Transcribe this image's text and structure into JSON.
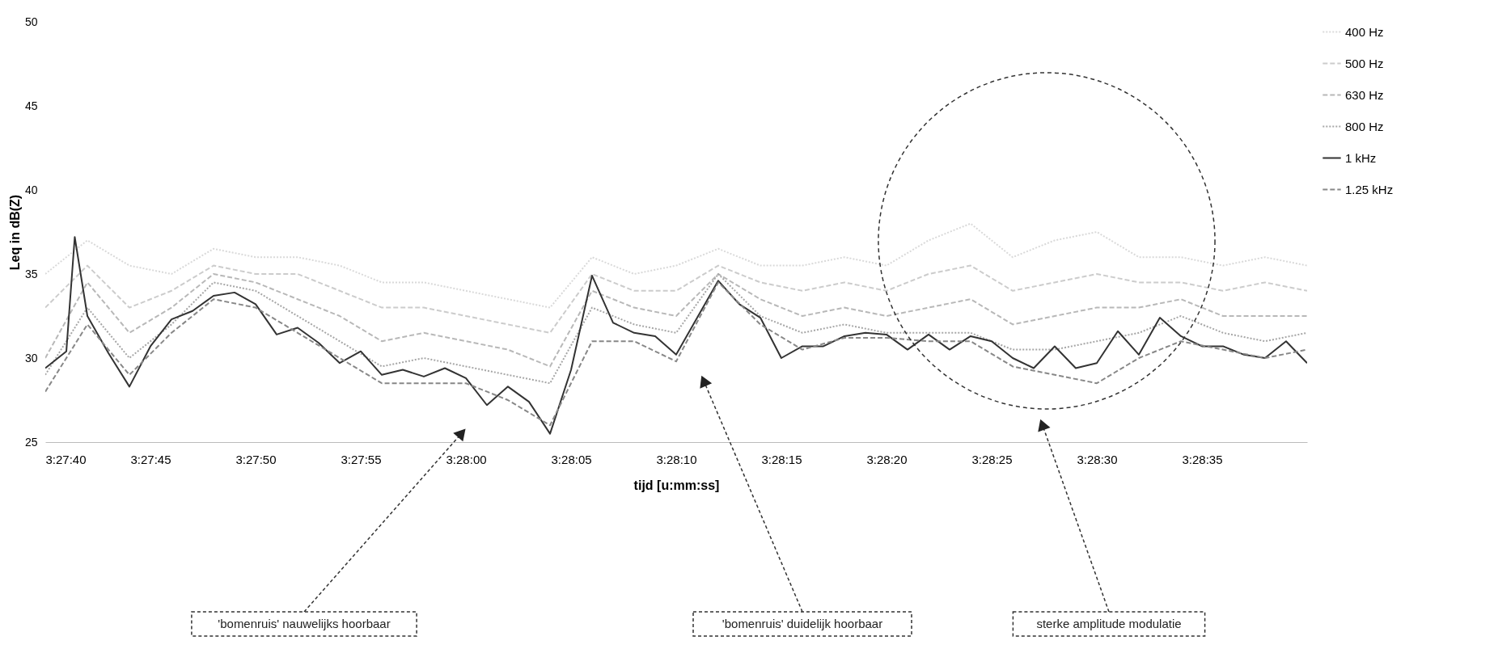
{
  "chart_data": {
    "type": "line",
    "xlabel": "tijd [u:mm:ss]",
    "ylabel": "Leq in dB(Z)",
    "xlim": [
      3.461111,
      3.477778
    ],
    "ylim": [
      25,
      50
    ],
    "yticks": [
      25,
      30,
      35,
      40,
      45,
      50
    ],
    "xticks": [
      {
        "value": 3.461111,
        "label": "3:27:40"
      },
      {
        "value": 3.4625,
        "label": "3:27:45"
      },
      {
        "value": 3.463889,
        "label": "3:27:50"
      },
      {
        "value": 3.465278,
        "label": "3:27:55"
      },
      {
        "value": 3.466667,
        "label": "3:28:00"
      },
      {
        "value": 3.468056,
        "label": "3:28:05"
      },
      {
        "value": 3.469444,
        "label": "3:28:10"
      },
      {
        "value": 3.470833,
        "label": "3:28:15"
      },
      {
        "value": 3.472222,
        "label": "3:28:20"
      },
      {
        "value": 3.473611,
        "label": "3:28:25"
      },
      {
        "value": 3.475,
        "label": "3:28:30"
      },
      {
        "value": 3.476389,
        "label": "3:28:35"
      }
    ],
    "grid": false,
    "legend": "right",
    "series": [
      {
        "name": "400 Hz",
        "color": "#d9d9d9",
        "line_style": "dotted",
        "x": [
          3.461111,
          3.461667,
          3.462222,
          3.462778,
          3.463333,
          3.463889,
          3.464444,
          3.465,
          3.465556,
          3.466111,
          3.466667,
          3.467222,
          3.467778,
          3.468333,
          3.468889,
          3.469444,
          3.47,
          3.470556,
          3.471111,
          3.471667,
          3.472222,
          3.472778,
          3.473333,
          3.473889,
          3.474444,
          3.475,
          3.475556,
          3.476111,
          3.476667,
          3.477222,
          3.477778
        ],
        "values": [
          35.0,
          37.0,
          35.5,
          35.0,
          36.5,
          36.0,
          36.0,
          35.5,
          34.5,
          34.5,
          34.0,
          33.5,
          33.0,
          36.0,
          35.0,
          35.5,
          36.5,
          35.5,
          35.5,
          36.0,
          35.5,
          37.0,
          38.0,
          36.0,
          37.0,
          37.5,
          36.0,
          36.0,
          35.5,
          36.0,
          35.5
        ]
      },
      {
        "name": "500 Hz",
        "color": "#cccccc",
        "line_style": "dashed",
        "x": [
          3.461111,
          3.461667,
          3.462222,
          3.462778,
          3.463333,
          3.463889,
          3.464444,
          3.465,
          3.465556,
          3.466111,
          3.466667,
          3.467222,
          3.467778,
          3.468333,
          3.468889,
          3.469444,
          3.47,
          3.470556,
          3.471111,
          3.471667,
          3.472222,
          3.472778,
          3.473333,
          3.473889,
          3.474444,
          3.475,
          3.475556,
          3.476111,
          3.476667,
          3.477222,
          3.477778
        ],
        "values": [
          33.0,
          35.5,
          33.0,
          34.0,
          35.5,
          35.0,
          35.0,
          34.0,
          33.0,
          33.0,
          32.5,
          32.0,
          31.5,
          35.0,
          34.0,
          34.0,
          35.5,
          34.5,
          34.0,
          34.5,
          34.0,
          35.0,
          35.5,
          34.0,
          34.5,
          35.0,
          34.5,
          34.5,
          34.0,
          34.5,
          34.0
        ]
      },
      {
        "name": "630 Hz",
        "color": "#b8b8b8",
        "line_style": "dashed",
        "x": [
          3.461111,
          3.461667,
          3.462222,
          3.462778,
          3.463333,
          3.463889,
          3.464444,
          3.465,
          3.465556,
          3.466111,
          3.466667,
          3.467222,
          3.467778,
          3.468333,
          3.468889,
          3.469444,
          3.47,
          3.470556,
          3.471111,
          3.471667,
          3.472222,
          3.472778,
          3.473333,
          3.473889,
          3.474444,
          3.475,
          3.475556,
          3.476111,
          3.476667,
          3.477222,
          3.477778
        ],
        "values": [
          30.0,
          34.5,
          31.5,
          33.0,
          35.0,
          34.5,
          33.5,
          32.5,
          31.0,
          31.5,
          31.0,
          30.5,
          29.5,
          34.0,
          33.0,
          32.5,
          35.0,
          33.5,
          32.5,
          33.0,
          32.5,
          33.0,
          33.5,
          32.0,
          32.5,
          33.0,
          33.0,
          33.5,
          32.5,
          32.5,
          32.5
        ]
      },
      {
        "name": "800 Hz",
        "color": "#a6a6a6",
        "line_style": "dotted",
        "x": [
          3.461111,
          3.461667,
          3.462222,
          3.462778,
          3.463333,
          3.463889,
          3.464444,
          3.465,
          3.465556,
          3.466111,
          3.466667,
          3.467222,
          3.467778,
          3.468333,
          3.468889,
          3.469444,
          3.47,
          3.470556,
          3.471111,
          3.471667,
          3.472222,
          3.472778,
          3.473333,
          3.473889,
          3.474444,
          3.475,
          3.475556,
          3.476111,
          3.476667,
          3.477222,
          3.477778
        ],
        "values": [
          29.0,
          33.0,
          30.0,
          32.0,
          34.5,
          34.0,
          32.5,
          31.0,
          29.5,
          30.0,
          29.5,
          29.0,
          28.5,
          33.0,
          32.0,
          31.5,
          35.0,
          32.5,
          31.5,
          32.0,
          31.5,
          31.5,
          31.5,
          30.5,
          30.5,
          31.0,
          31.5,
          32.5,
          31.5,
          31.0,
          31.5
        ]
      },
      {
        "name": "1 kHz",
        "color": "#333333",
        "line_style": "solid",
        "x": [
          3.461111,
          3.461389,
          3.4615,
          3.461667,
          3.461944,
          3.462222,
          3.4625,
          3.462778,
          3.463056,
          3.463333,
          3.463611,
          3.463889,
          3.464167,
          3.464444,
          3.464722,
          3.465,
          3.465278,
          3.465556,
          3.465833,
          3.466111,
          3.466389,
          3.466667,
          3.466944,
          3.467222,
          3.4675,
          3.467778,
          3.468056,
          3.468333,
          3.468611,
          3.468889,
          3.469167,
          3.469444,
          3.469722,
          3.47,
          3.470278,
          3.470556,
          3.470833,
          3.471111,
          3.471389,
          3.471667,
          3.471944,
          3.472222,
          3.4725,
          3.472778,
          3.473056,
          3.473333,
          3.473611,
          3.473889,
          3.474167,
          3.474444,
          3.474722,
          3.475,
          3.475278,
          3.475556,
          3.475833,
          3.476111,
          3.476389,
          3.476667,
          3.476944,
          3.477222,
          3.4775,
          3.477778
        ],
        "values": [
          29.4,
          30.4,
          37.2,
          32.5,
          30.3,
          28.3,
          30.7,
          32.3,
          32.8,
          33.7,
          33.9,
          33.2,
          31.4,
          31.8,
          30.9,
          29.7,
          30.4,
          29.0,
          29.3,
          28.9,
          29.4,
          28.8,
          27.2,
          28.3,
          27.4,
          25.5,
          29.3,
          34.9,
          32.1,
          31.5,
          31.3,
          30.2,
          32.4,
          34.6,
          33.2,
          32.4,
          30.0,
          30.7,
          30.7,
          31.3,
          31.5,
          31.4,
          30.5,
          31.4,
          30.5,
          31.3,
          31.0,
          30.0,
          29.4,
          30.7,
          29.4,
          29.7,
          31.6,
          30.2,
          32.4,
          31.3,
          30.7,
          30.7,
          30.2,
          30.0,
          31.0,
          29.7
        ]
      },
      {
        "name": "1.25 kHz",
        "color": "#888888",
        "line_style": "dashed",
        "x": [
          3.461111,
          3.461667,
          3.462222,
          3.462778,
          3.463333,
          3.463889,
          3.464444,
          3.465,
          3.465556,
          3.466111,
          3.466667,
          3.467222,
          3.467778,
          3.468333,
          3.468889,
          3.469444,
          3.47,
          3.470556,
          3.471111,
          3.471667,
          3.472222,
          3.472778,
          3.473333,
          3.473889,
          3.474444,
          3.475,
          3.475556,
          3.476111,
          3.476667,
          3.477222,
          3.477778
        ],
        "values": [
          28.0,
          32.0,
          29.0,
          31.5,
          33.5,
          33.0,
          31.5,
          30.0,
          28.5,
          28.5,
          28.5,
          27.5,
          26.0,
          31.0,
          31.0,
          29.8,
          34.5,
          32.0,
          30.5,
          31.2,
          31.2,
          31.0,
          31.0,
          29.5,
          29.0,
          28.5,
          30.0,
          31.0,
          30.5,
          30.0,
          30.5
        ]
      }
    ],
    "annotations": [
      "'bomenruis' nauwelijks hoorbaar",
      "'bomenruis' duidelijk hoorbaar",
      "sterke amplitude modulatie"
    ]
  }
}
